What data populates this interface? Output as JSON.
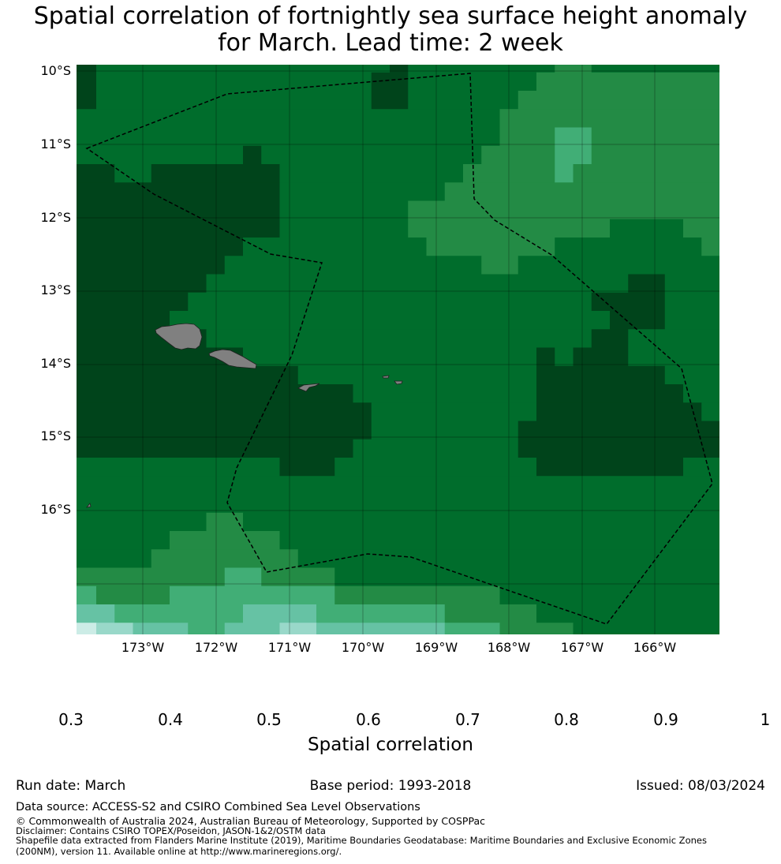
{
  "title_line1": "Spatial correlation of fortnightly sea surface height anomaly",
  "title_line2": "for March. Lead time: 2 week",
  "chart_data": {
    "type": "heatmap",
    "title": "Spatial correlation of fortnightly sea surface height anomaly for March. Lead time: 2 week",
    "grid_resolution_deg": 0.25,
    "lon_range": [
      "173.9°W",
      "165.1°W"
    ],
    "lat_range": [
      "9.9°S",
      "17.7°S"
    ],
    "lon_ticks": [
      "173°W",
      "172°W",
      "171°W",
      "170°W",
      "169°W",
      "168°W",
      "167°W",
      "166°W"
    ],
    "lat_ticks": [
      "10°S",
      "11°S",
      "12°S",
      "13°S",
      "14°S",
      "15°S",
      "16°S"
    ],
    "gridlines": true,
    "levels": {
      "A": {
        "range": [
          0.9,
          1.0
        ],
        "color": "#00441b"
      },
      "B": {
        "range": [
          0.8,
          0.9
        ],
        "color": "#006d2c"
      },
      "C": {
        "range": [
          0.7,
          0.8
        ],
        "color": "#238b45"
      },
      "D": {
        "range": [
          0.6,
          0.7
        ],
        "color": "#41ae76"
      },
      "E": {
        "range": [
          0.5,
          0.6
        ],
        "color": "#66c2a4"
      },
      "F": {
        "range": [
          0.4,
          0.5
        ],
        "color": "#99d8c9"
      },
      "G": {
        "range": [
          0.3,
          0.4
        ],
        "color": "#ccece6"
      }
    },
    "rows_rle": [
      "A2B16A1B8C2B7",
      "A2B15A2B7C10",
      "A2B15A2B6C11",
      "B24C12",
      "B24C3D2C7",
      "B10A1B12C4D2C7",
      "A3B2A7B10C5D1C8",
      "A12B9C15",
      "A12B7C17",
      "A12B7C11B4C2",
      "A10B10C7B8C1",
      "A9B14C2B11",
      "A8B23A2B3",
      "A7B22A4B3",
      "A6B24A3B3",
      "A8B21A2B5",
      "A10B16A1B1A3B5",
      "A13B13A7B3",
      "A16B10A8B2",
      "A17B9A9B1",
      "A17B8A11",
      "A16B9A11",
      "B12A3B11A8B2",
      "B36",
      "B36",
      "B8C2B26",
      "B6C6B24",
      "B5C8B23",
      "C9D2C4B21",
      "D2C4D9C9B12",
      "E3D7E4D7C5B10",
      "G2F2E3D2E3F2E7D3C4B8"
    ],
    "colorbar": {
      "label": "Spatial correlation",
      "ticks": [
        "0.3",
        "0.4",
        "0.5",
        "0.6",
        "0.7",
        "0.8",
        "0.9",
        "1"
      ],
      "colors": [
        "#ccece6",
        "#99d8c9",
        "#66c2a4",
        "#41ae76",
        "#238b45",
        "#006d2c",
        "#00441b"
      ],
      "extend_min_color": "#e5f5f9",
      "orientation": "horizontal"
    },
    "land_color": "#808080",
    "boundary_style": "dashed EEZ line"
  },
  "footer": {
    "run_date": "Run date: March",
    "base_period": "Base period: 1993-2018",
    "issued": "Issued: 08/03/2024",
    "data_source": "Data source: ACCESS-S2 and CSIRO Combined Sea Level Observations",
    "copyright": "© Commonwealth of Australia 2024, Australian Bureau of Meteorology, Supported by COSPPac",
    "disclaimer": "Disclaimer: Contains CSIRO TOPEX/Poseidon, JASON-1&2/OSTM data",
    "shapefile_1": "Shapefile data extracted from Flanders Marine Institute (2019), Maritime Boundaries Geodatabase: Maritime Boundaries and Exclusive Economic Zones",
    "shapefile_2": "(200NM), version 11. Available online at http://www.marineregions.org/."
  }
}
